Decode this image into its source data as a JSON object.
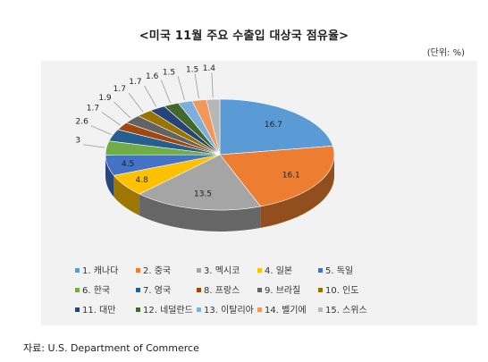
{
  "title": "<미국 11월 주요 수출입 대상국 점유율>",
  "unit_note": "(단위: %)",
  "source": "자료: U.S. Department of Commerce",
  "chart_data": {
    "type": "pie",
    "title": "<미국 11월 주요 수출입 대상국 점유율>",
    "categories": [
      "1. 캐나다",
      "2. 중국",
      "3. 멕시코",
      "4. 일본",
      "5. 독일",
      "6. 한국",
      "7. 영국",
      "8. 프랑스",
      "9. 브라질",
      "10. 인도",
      "11. 대만",
      "12. 네덜란드",
      "13. 이탈리아",
      "14. 벨기에",
      "15. 스위스"
    ],
    "values": [
      16.7,
      16.1,
      13.5,
      4.8,
      4.5,
      3,
      2.6,
      1.7,
      1.9,
      1.7,
      1.7,
      1.6,
      1.5,
      1.5,
      1.4
    ],
    "colors": [
      "#5b9bd5",
      "#ed7d31",
      "#a5a5a5",
      "#ffc000",
      "#4472c4",
      "#70ad47",
      "#255e91",
      "#9e480e",
      "#636363",
      "#997300",
      "#264478",
      "#43682b",
      "#7cafdd",
      "#f1975a",
      "#b7b7b7"
    ],
    "legend_position": "bottom",
    "style": "3d-pie"
  }
}
